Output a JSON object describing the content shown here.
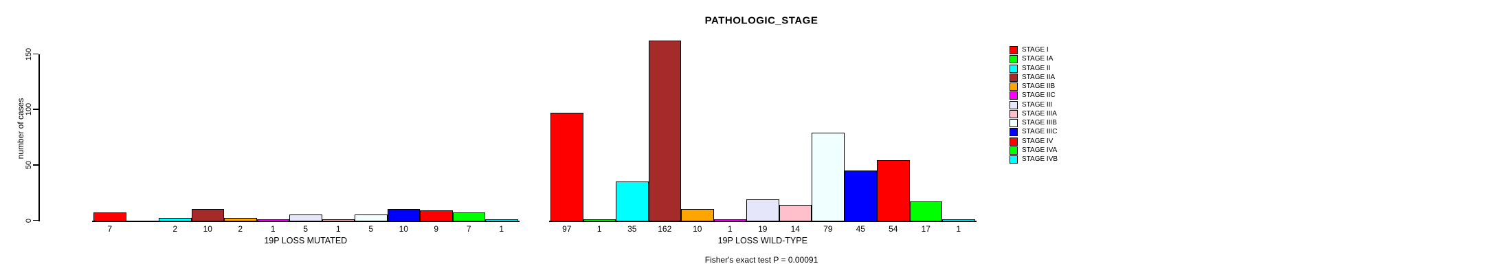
{
  "chart_data": {
    "type": "bar",
    "title": "PATHOLOGIC_STAGE",
    "ylabel": "number of cases",
    "ylim": [
      0,
      150
    ],
    "yticks": [
      0,
      50,
      100,
      150
    ],
    "grid": false,
    "legend_position": "right",
    "stages": [
      "STAGE I",
      "STAGE IA",
      "STAGE II",
      "STAGE IIA",
      "STAGE IIB",
      "STAGE IIC",
      "STAGE III",
      "STAGE IIIA",
      "STAGE IIIB",
      "STAGE IIIC",
      "STAGE IV",
      "STAGE IVA",
      "STAGE IVB"
    ],
    "colors": [
      "#FF0000",
      "#00FF00",
      "#00FFFF",
      "#A52A2A",
      "#FFA500",
      "#FF00FF",
      "#E6E6FA",
      "#FFC0CB",
      "#F0FFFF",
      "#0000FF",
      "#FF0000",
      "#00FF00",
      "#00FFFF"
    ],
    "groups": [
      {
        "label": "19P LOSS MUTATED",
        "values": [
          7,
          0,
          2,
          10,
          2,
          1,
          5,
          1,
          5,
          10,
          9,
          7,
          1
        ]
      },
      {
        "label": "19P LOSS WILD-TYPE",
        "values": [
          97,
          1,
          35,
          162,
          10,
          1,
          19,
          14,
          79,
          45,
          54,
          17,
          1
        ]
      }
    ],
    "annotation": "Fisher's exact test P = 0.00091"
  }
}
